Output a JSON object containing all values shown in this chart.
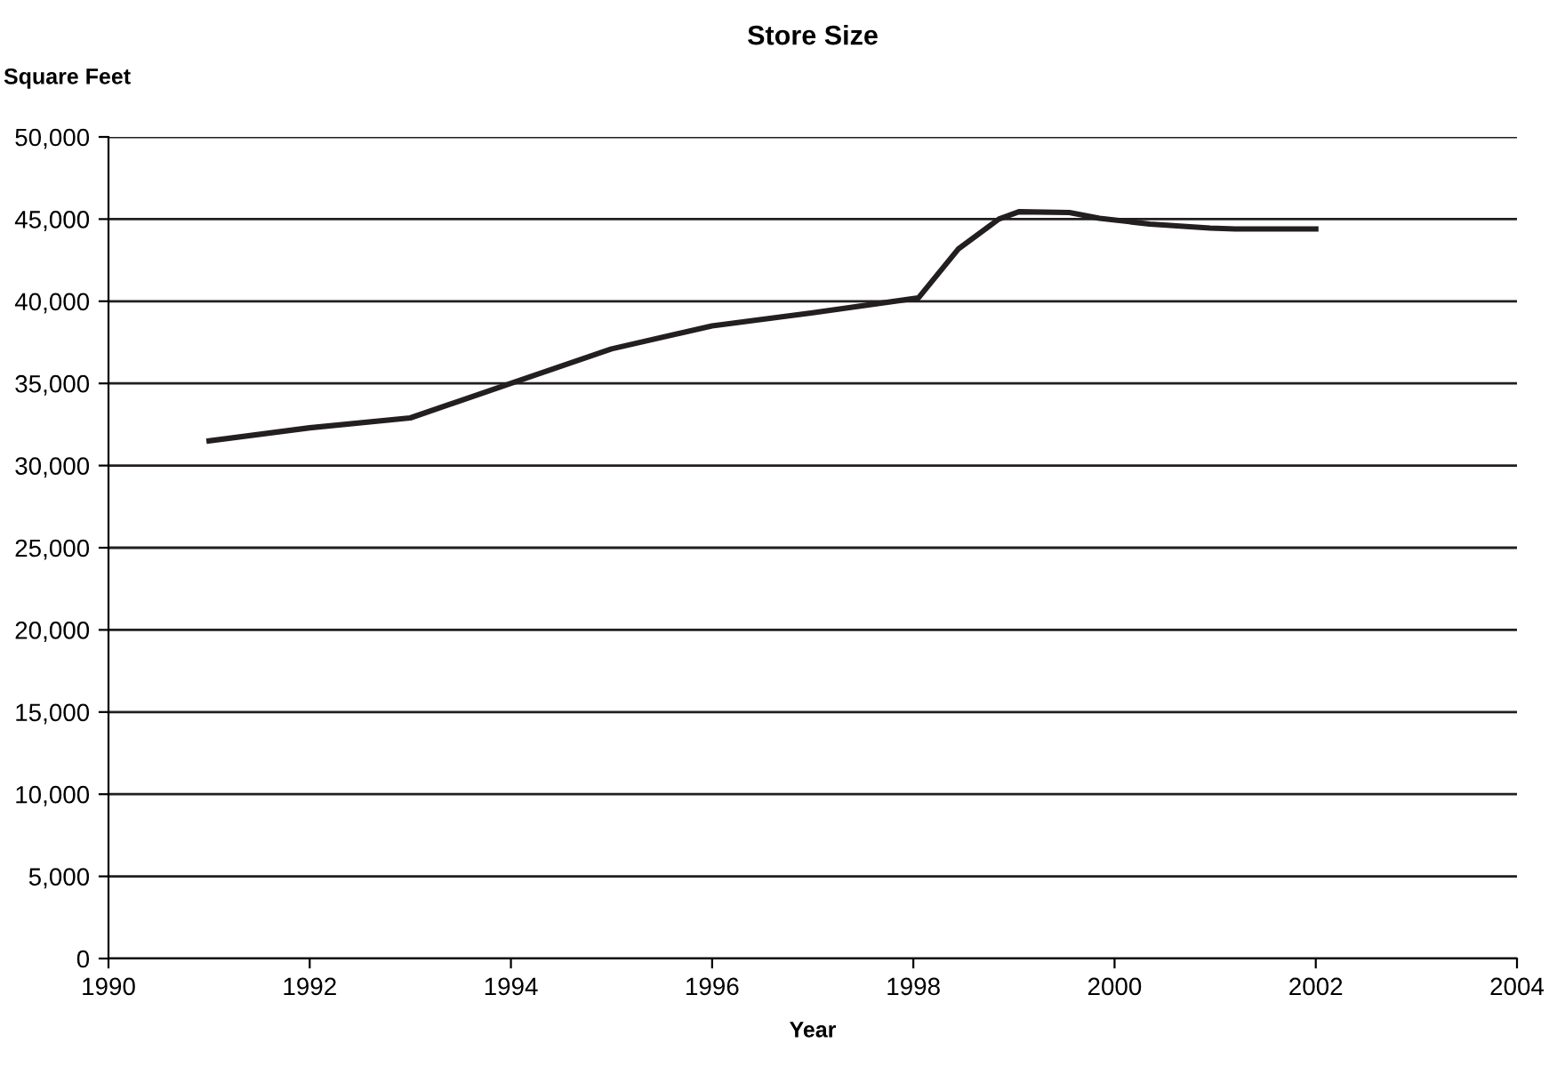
{
  "chart_data": {
    "type": "line",
    "title": "Store Size",
    "ylabel": "Square Feet",
    "xlabel": "Year",
    "x": [
      1991,
      1992,
      1993,
      1994,
      1995,
      1996,
      1997,
      1998.05,
      1998.45,
      1998.85,
      1999.05,
      1999.55,
      1999.85,
      2000.35,
      2000.95,
      2001.2,
      2002
    ],
    "series": [
      {
        "color": "#231f20",
        "values": [
          31500,
          32300,
          32900,
          35000,
          37100,
          38500,
          39300,
          40200,
          43200,
          45000,
          45450,
          45400,
          45050,
          44700,
          44450,
          44400,
          44400
        ]
      }
    ],
    "xlim": [
      1990,
      2004
    ],
    "xticks": [
      1990,
      1992,
      1994,
      1996,
      1998,
      2000,
      2002,
      2004
    ],
    "ylim": [
      0,
      50000
    ],
    "yticks": [
      {
        "value": 0,
        "label": "0"
      },
      {
        "value": 5000,
        "label": "5,000"
      },
      {
        "value": 10000,
        "label": "10,000"
      },
      {
        "value": 15000,
        "label": "15,000"
      },
      {
        "value": 20000,
        "label": "20,000"
      },
      {
        "value": 25000,
        "label": "25,000"
      },
      {
        "value": 30000,
        "label": "30,000"
      },
      {
        "value": 35000,
        "label": "35,000"
      },
      {
        "value": 40000,
        "label": "40,000"
      },
      {
        "value": 45000,
        "label": "45,000"
      },
      {
        "value": 50000,
        "label": "50,000"
      }
    ],
    "grid": "y",
    "legend": false,
    "marker": "none",
    "line_style": "solid"
  }
}
